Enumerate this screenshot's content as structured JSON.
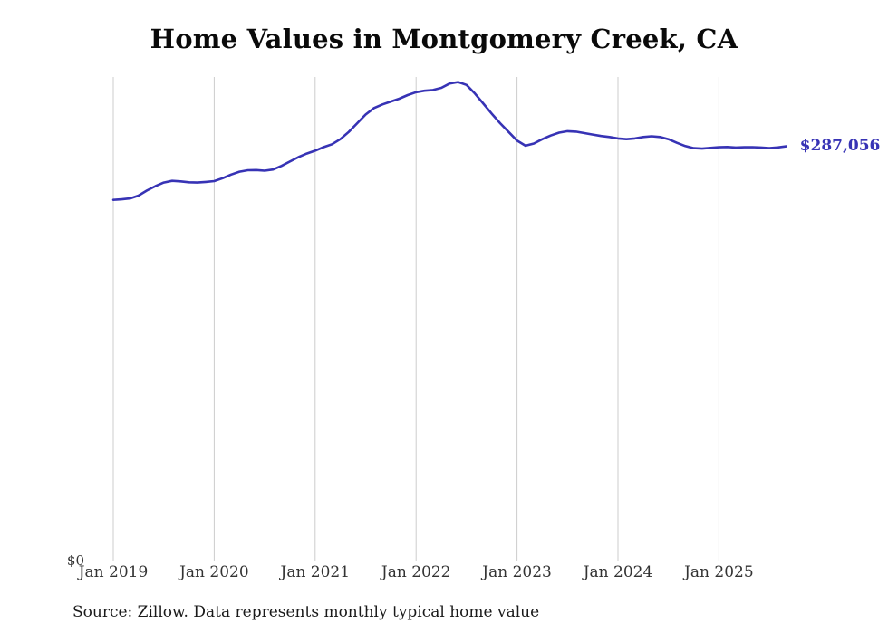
{
  "title": "Home Values in Montgomery Creek, CA",
  "latest_value_label": "$287,056",
  "y_zero_label": "$0",
  "source_note": "Source: Zillow. Data represents monthly typical home value",
  "colors": {
    "line": "#3733b5",
    "latest_label": "#3733b5",
    "grid": "#cccccc",
    "tick_text": "#333333"
  },
  "chart_data": {
    "type": "line",
    "title": "Home Values in Montgomery Creek, CA",
    "xlabel": "",
    "ylabel": "",
    "ylim": [
      0,
      335000
    ],
    "grid": "vertical-only",
    "legend": "none",
    "x_tick_labels": [
      "Jan 2019",
      "Jan 2020",
      "Jan 2021",
      "Jan 2022",
      "Jan 2023",
      "Jan 2024",
      "Jan 2025"
    ],
    "x_start_month": "2019-01",
    "x_end_month": "2025-09",
    "end_value": 287056,
    "end_value_label": "$287,056",
    "series": [
      {
        "name": "Monthly typical home value",
        "values": [
          250000,
          250400,
          251000,
          253000,
          256500,
          259500,
          262000,
          263200,
          262800,
          262200,
          262000,
          262400,
          263000,
          265000,
          267500,
          269500,
          270500,
          270600,
          270200,
          271000,
          273500,
          276500,
          279500,
          282000,
          284000,
          286500,
          288500,
          292000,
          297000,
          303000,
          309000,
          313500,
          316000,
          318000,
          320000,
          322500,
          324500,
          325500,
          326000,
          327500,
          330500,
          331500,
          329500,
          323500,
          316500,
          309500,
          303000,
          297000,
          291000,
          287500,
          289000,
          292000,
          294500,
          296500,
          297500,
          297200,
          296200,
          295200,
          294200,
          293500,
          292500,
          292000,
          292500,
          293500,
          294000,
          293500,
          292000,
          289500,
          287200,
          285800,
          285500,
          286000,
          286400,
          286600,
          286200,
          286400,
          286500,
          286200,
          285800,
          286300,
          287056
        ]
      }
    ]
  }
}
